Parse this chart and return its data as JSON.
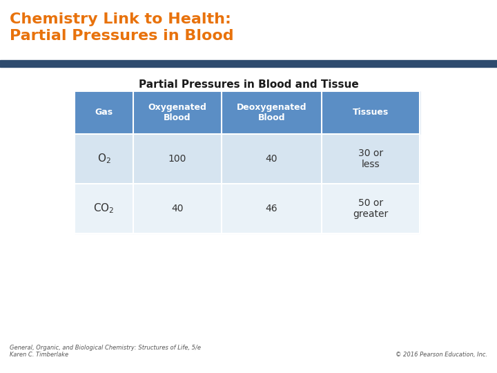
{
  "title_line1": "Chemistry Link to Health:",
  "title_line2": "Partial Pressures in Blood",
  "title_color": "#E8720C",
  "title_bg_color": "#FFFFFF",
  "divider_color": "#2E4B6E",
  "table_title": "Partial Pressures in Blood and Tissue",
  "table_title_color": "#1a1a1a",
  "header_bg": "#5B8EC5",
  "row1_bg": "#D6E4F0",
  "row2_bg": "#EAF2F8",
  "header_text_color": "#FFFFFF",
  "cell_text_color": "#333333",
  "headers": [
    "Gas",
    "Oxygenated\nBlood",
    "Deoxygenated\nBlood",
    "Tissues"
  ],
  "row1": [
    "O₂",
    "100",
    "40",
    "30 or\nless"
  ],
  "row2": [
    "CO₂",
    "40",
    "46",
    "50 or\ngreater"
  ],
  "footer_left": "General, Organic, and Biological Chemistry: Structures of Life, 5/e\nKaren C. Timberlake",
  "footer_right": "© 2016 Pearson Education, Inc.",
  "footer_color": "#555555",
  "bg_color": "#FFFFFF",
  "title_fontsize": 16,
  "table_title_fontsize": 11,
  "header_fontsize": 9,
  "cell_fontsize": 10,
  "footer_fontsize": 6
}
